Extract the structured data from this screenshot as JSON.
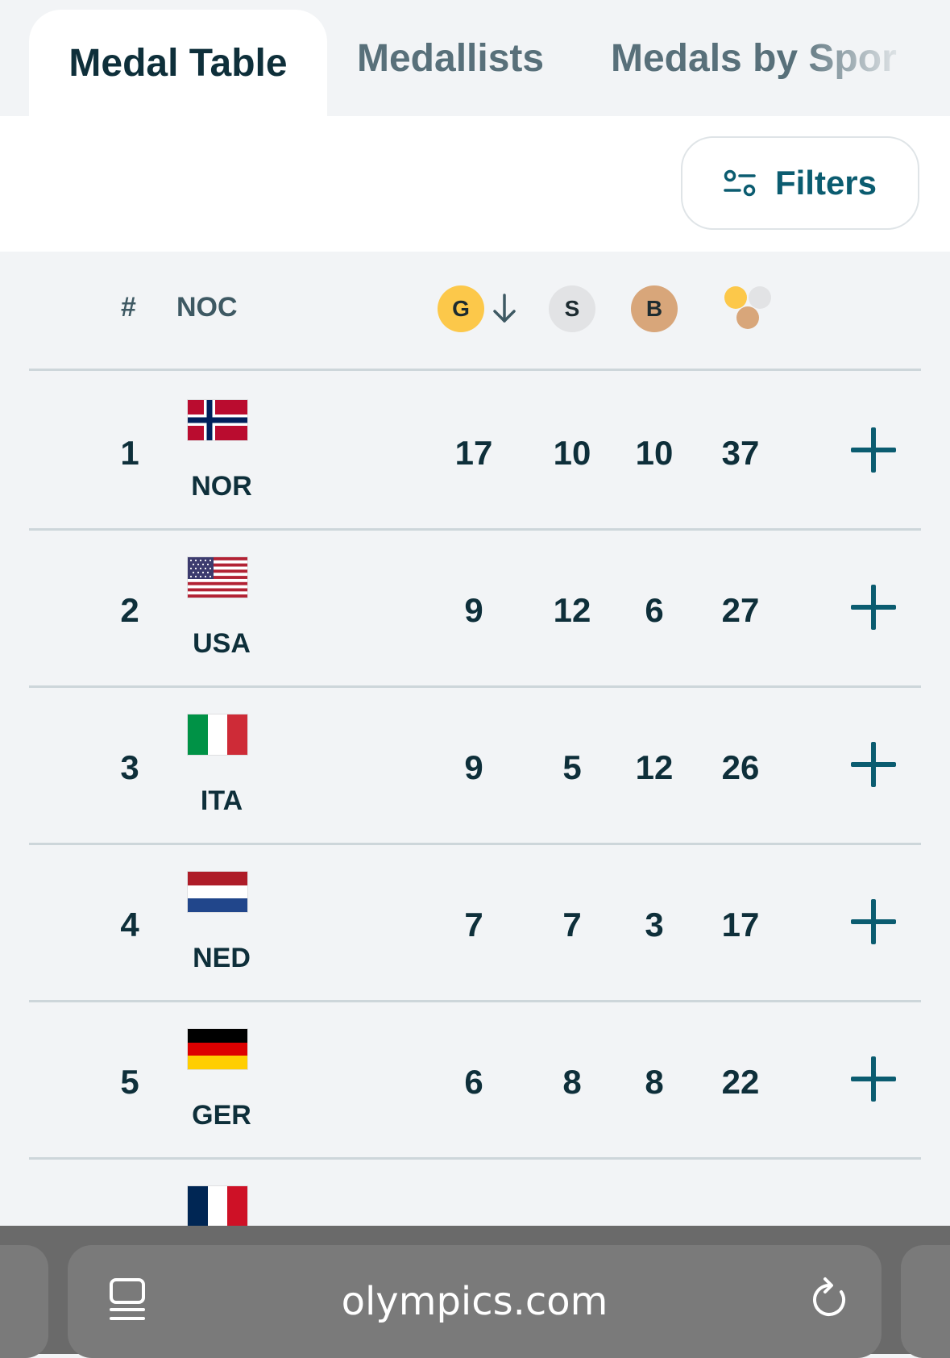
{
  "tabs": [
    {
      "label": "Medal Table",
      "active": true
    },
    {
      "label": "Medallists",
      "active": false
    },
    {
      "label": "Medals by Spor",
      "active": false
    }
  ],
  "filters": {
    "label": "Filters",
    "icon": "sliders-icon"
  },
  "table": {
    "headers": {
      "rank": "#",
      "noc": "NOC",
      "gold": "G",
      "silver": "S",
      "bronze": "B",
      "total_icon": "medals-total-icon",
      "sort_icon": "arrow-down-icon"
    },
    "colors": {
      "gold": "#fcc84a",
      "silver": "#e2e3e5",
      "bronze": "#d8a67a",
      "accent": "#0b5c70"
    },
    "rows": [
      {
        "rank": "1",
        "noc": "NOR",
        "flag": "norway-flag",
        "gold": "17",
        "silver": "10",
        "bronze": "10",
        "total": "37"
      },
      {
        "rank": "2",
        "noc": "USA",
        "flag": "usa-flag",
        "gold": "9",
        "silver": "12",
        "bronze": "6",
        "total": "27"
      },
      {
        "rank": "3",
        "noc": "ITA",
        "flag": "italy-flag",
        "gold": "9",
        "silver": "5",
        "bronze": "12",
        "total": "26"
      },
      {
        "rank": "4",
        "noc": "NED",
        "flag": "netherlands-flag",
        "gold": "7",
        "silver": "7",
        "bronze": "3",
        "total": "17"
      },
      {
        "rank": "5",
        "noc": "GER",
        "flag": "germany-flag",
        "gold": "6",
        "silver": "8",
        "bronze": "8",
        "total": "22"
      },
      {
        "rank": "",
        "noc": "",
        "flag": "france-flag",
        "gold": "",
        "silver": "",
        "bronze": "",
        "total": ""
      }
    ]
  },
  "browser": {
    "url": "olympics.com",
    "menu_icon": "tab-overview-icon",
    "reload_icon": "reload-icon"
  }
}
